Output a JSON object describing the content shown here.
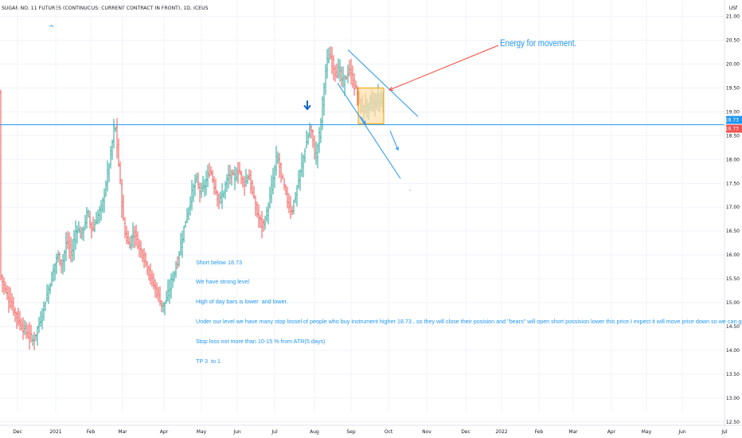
{
  "header": {
    "title": "SUGAR NO. 11 FUTURES (CONTINUOUS: CURRENT CONTRACT IN FRONT), 1D, ICEUS",
    "currency": "USf"
  },
  "annotations": {
    "energy": "Energy for movement.",
    "note_lines": [
      "Short below 18.73",
      "We have strong level",
      "High of day bars is lower  and lower.",
      "Under our level we have many stop lossel of people who buy instrument higher 18.73 , so they will close their posision and \"bears\" will open short possision lower this price.I expect it will move price down so we can get good trade.",
      "Stop loss not more than 10-15 % from ATR(5 days)",
      "TP 3  to 1"
    ],
    "collapse_glyph": "^"
  },
  "colors": {
    "accent": "#2196f3",
    "up": "#26a69a",
    "down": "#ef5350",
    "red_line": "#f44336",
    "box_fill": "#ffe0a8",
    "box_border": "#f0a000"
  },
  "chart_data": {
    "type": "bar",
    "symbol": "SUGAR NO. 11 FUTURES (CONTINUOUS: CURRENT CONTRACT IN FRONT)",
    "timeframe": "1D",
    "ylim": [
      12.5,
      21.0
    ],
    "yticks": [
      "21.00",
      "20.50",
      "20.00",
      "19.50",
      "19.00",
      "18.50",
      "18.00",
      "17.50",
      "17.00",
      "16.50",
      "16.00",
      "15.50",
      "15.00",
      "14.50",
      "14.00",
      "13.50",
      "13.00",
      "12.50"
    ],
    "xticks": [
      "Dec",
      "2021",
      "Feb",
      "Mar",
      "Apr",
      "May",
      "Jun",
      "Jul",
      "Aug",
      "Sep",
      "Oct",
      "Nov",
      "Dec",
      "2022",
      "Feb",
      "Mar",
      "Apr",
      "May",
      "Jun",
      "Jul"
    ],
    "price_labels": [
      {
        "value": 18.73,
        "text": "18.73",
        "color": "#2196f3"
      },
      {
        "value": 18.73,
        "text": "18.73",
        "color": "#ef5350"
      }
    ],
    "horizontal_level": 18.73,
    "close_path": [
      [
        0,
        15.6
      ],
      [
        8,
        15.2
      ],
      [
        16,
        14.9
      ],
      [
        24,
        14.6
      ],
      [
        32,
        14.4
      ],
      [
        42,
        14.2
      ],
      [
        50,
        14.6
      ],
      [
        58,
        15.1
      ],
      [
        66,
        15.6
      ],
      [
        72,
        16.0
      ],
      [
        78,
        15.8
      ],
      [
        84,
        16.3
      ],
      [
        90,
        16.0
      ],
      [
        96,
        16.6
      ],
      [
        102,
        16.4
      ],
      [
        110,
        16.9
      ],
      [
        116,
        16.5
      ],
      [
        122,
        16.8
      ],
      [
        128,
        17.0
      ],
      [
        134,
        17.6
      ],
      [
        140,
        18.2
      ],
      [
        144,
        18.8
      ],
      [
        148,
        18.1
      ],
      [
        152,
        17.3
      ],
      [
        156,
        16.5
      ],
      [
        162,
        16.2
      ],
      [
        168,
        16.5
      ],
      [
        174,
        16.2
      ],
      [
        180,
        16.0
      ],
      [
        186,
        15.7
      ],
      [
        192,
        15.4
      ],
      [
        198,
        15.2
      ],
      [
        204,
        14.9
      ],
      [
        210,
        15.1
      ],
      [
        216,
        15.5
      ],
      [
        222,
        15.8
      ],
      [
        228,
        16.3
      ],
      [
        234,
        16.8
      ],
      [
        240,
        17.2
      ],
      [
        246,
        17.6
      ],
      [
        252,
        17.3
      ],
      [
        258,
        17.5
      ],
      [
        264,
        17.8
      ],
      [
        270,
        17.4
      ],
      [
        276,
        17.1
      ],
      [
        282,
        17.4
      ],
      [
        288,
        17.7
      ],
      [
        294,
        17.6
      ],
      [
        300,
        17.8
      ],
      [
        306,
        17.5
      ],
      [
        312,
        17.7
      ],
      [
        318,
        17.2
      ],
      [
        324,
        16.8
      ],
      [
        330,
        16.6
      ],
      [
        336,
        16.9
      ],
      [
        342,
        17.5
      ],
      [
        348,
        18.1
      ],
      [
        354,
        17.6
      ],
      [
        360,
        17.2
      ],
      [
        366,
        16.9
      ],
      [
        372,
        17.3
      ],
      [
        378,
        17.8
      ],
      [
        384,
        18.3
      ],
      [
        390,
        18.7
      ],
      [
        396,
        18.0
      ],
      [
        402,
        18.6
      ],
      [
        406,
        19.4
      ],
      [
        410,
        20.0
      ],
      [
        414,
        20.2
      ],
      [
        418,
        20.0
      ],
      [
        422,
        19.8
      ],
      [
        426,
        19.9
      ],
      [
        430,
        19.6
      ],
      [
        434,
        19.7
      ],
      [
        438,
        19.9
      ],
      [
        442,
        19.7
      ],
      [
        446,
        19.5
      ],
      [
        450,
        19.3
      ],
      [
        454,
        19.0
      ],
      [
        458,
        19.2
      ],
      [
        462,
        19.0
      ],
      [
        466,
        19.3
      ],
      [
        470,
        19.1
      ],
      [
        474,
        19.3
      ],
      [
        478,
        19.2
      ],
      [
        482,
        19.4
      ]
    ],
    "box": {
      "x_from": 450,
      "x_to": 482,
      "y_from": 19.5,
      "y_to": 18.75
    },
    "channel": {
      "upper": [
        [
          437,
          20.3
        ],
        [
          525,
          18.9
        ]
      ],
      "lower": [
        [
          424,
          19.6
        ],
        [
          503,
          17.6
        ]
      ]
    },
    "arrows": [
      {
        "from": [
          490,
          18.6
        ],
        "to": [
          500,
          18.2
        ]
      },
      {
        "from": [
          453,
          18.9
        ],
        "to": [
          459,
          18.75
        ]
      }
    ],
    "down_marker": {
      "x": 386,
      "y": 19.02
    }
  }
}
